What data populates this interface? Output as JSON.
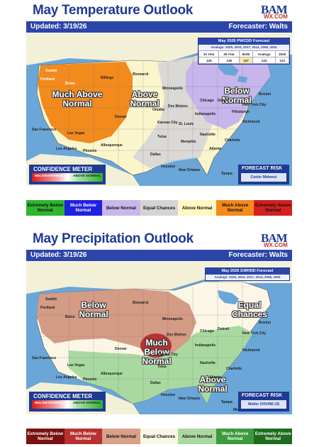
{
  "temperature": {
    "title": "May Temperature Outlook",
    "updated": "Updated: 3/19/26",
    "forecaster": "Forecaster: Walts",
    "table": {
      "title": "May 2026 PWCDD Forecast",
      "analogs": "Analogs: 2025, 2023, 2017, 2014, 2006, 2004",
      "headers": [
        "10 Year",
        "30 Year",
        "BAM",
        "Analogs",
        "2025"
      ],
      "values": [
        "126",
        "139",
        "127",
        "124",
        "123"
      ]
    },
    "regions": {
      "much_above": "Much Above Normal",
      "above": "Above Normal",
      "below": "Below Normal"
    },
    "confidence": {
      "title": "CONFIDENCE METER",
      "left": "BELOW NORMAL",
      "right": "ABOVE NORMAL"
    },
    "risk": {
      "title": "FORECAST RISK",
      "value": "Cooler Midwest"
    },
    "legend": [
      {
        "label": "Extremely Below Normal",
        "bg": "#2fb52f",
        "fg": "#111111"
      },
      {
        "label": "Much Below Normal",
        "bg": "#2020e0",
        "fg": "#ffffff"
      },
      {
        "label": "Below Normal",
        "bg": "#c8b8ea",
        "fg": "#111111"
      },
      {
        "label": "Equal Chances",
        "bg": "#d4d4d4",
        "fg": "#111111"
      },
      {
        "label": "Above Normal",
        "bg": "#fff7c2",
        "fg": "#111111"
      },
      {
        "label": "Much Above Normal",
        "bg": "#f28a1c",
        "fg": "#111111"
      },
      {
        "label": "Extremely Above Normal",
        "bg": "#d42020",
        "fg": "#111111"
      }
    ],
    "cities": [
      "Seattle",
      "Portland",
      "Boise",
      "San Francisco",
      "Las Vegas",
      "Los Angeles",
      "Phoenix",
      "Denver",
      "Billings",
      "Bismarck",
      "Minneapolis",
      "Des Moines",
      "Omaha",
      "Kansas City",
      "Albuquerque",
      "Dallas",
      "Houston",
      "Tulsa",
      "Memphis",
      "Chicago",
      "Indianapolis",
      "St. Louis",
      "Nashville",
      "Atlanta",
      "Charlotte",
      "Detroit",
      "Pittsburgh",
      "New York City",
      "Boston",
      "Richmond",
      "New Orleans",
      "Tampa"
    ]
  },
  "precipitation": {
    "title": "May Precipitation Outlook",
    "updated": "Updated: 3/19/26",
    "forecaster": "Forecaster: Walts",
    "table": {
      "title": "May 2026 GWHDD Forecast",
      "analogs": "Analogs: 2025, 2023, 2017, 2014, 2006, 2004"
    },
    "regions": {
      "below": "Below Normal",
      "much_below": "Much Below Normal",
      "equal": "Equal Chances",
      "above": "Above Normal"
    },
    "confidence": {
      "title": "CONFIDENCE METER",
      "left": "BELOW NORMAL",
      "right": "ABOVE NORMAL"
    },
    "risk": {
      "title": "FORECAST RISK",
      "value": "Wetter OHV/NE US"
    },
    "legend": [
      {
        "label": "Extremely Below Normal",
        "bg": "#7a1010",
        "fg": "#ffffff"
      },
      {
        "label": "Much Below Normal",
        "bg": "#b83030",
        "fg": "#ffffff"
      },
      {
        "label": "Below Normal",
        "bg": "#d9a08a",
        "fg": "#111111"
      },
      {
        "label": "Equal Chances",
        "bg": "#fbf6e6",
        "fg": "#111111"
      },
      {
        "label": "Above Normal",
        "bg": "#a9d9a0",
        "fg": "#111111"
      },
      {
        "label": "Much Above Normal",
        "bg": "#3e9a3e",
        "fg": "#ffffff"
      },
      {
        "label": "Extremely Above Normal",
        "bg": "#1f6b1f",
        "fg": "#ffffff"
      }
    ],
    "cities": [
      "Seattle",
      "Portland",
      "Boise",
      "San Francisco",
      "Las Vegas",
      "Los Angeles",
      "Phoenix",
      "Denver",
      "Bismarck",
      "Minneapolis",
      "Des Moines",
      "Chicago",
      "Indianapolis",
      "Kansas City",
      "Albuquerque",
      "Dallas",
      "Houston",
      "Tulsa",
      "Nashville",
      "Atlanta",
      "Charlotte",
      "Detroit",
      "New York City",
      "Boston",
      "Richmond",
      "New Orleans",
      "Tampa",
      "Miami"
    ]
  }
}
